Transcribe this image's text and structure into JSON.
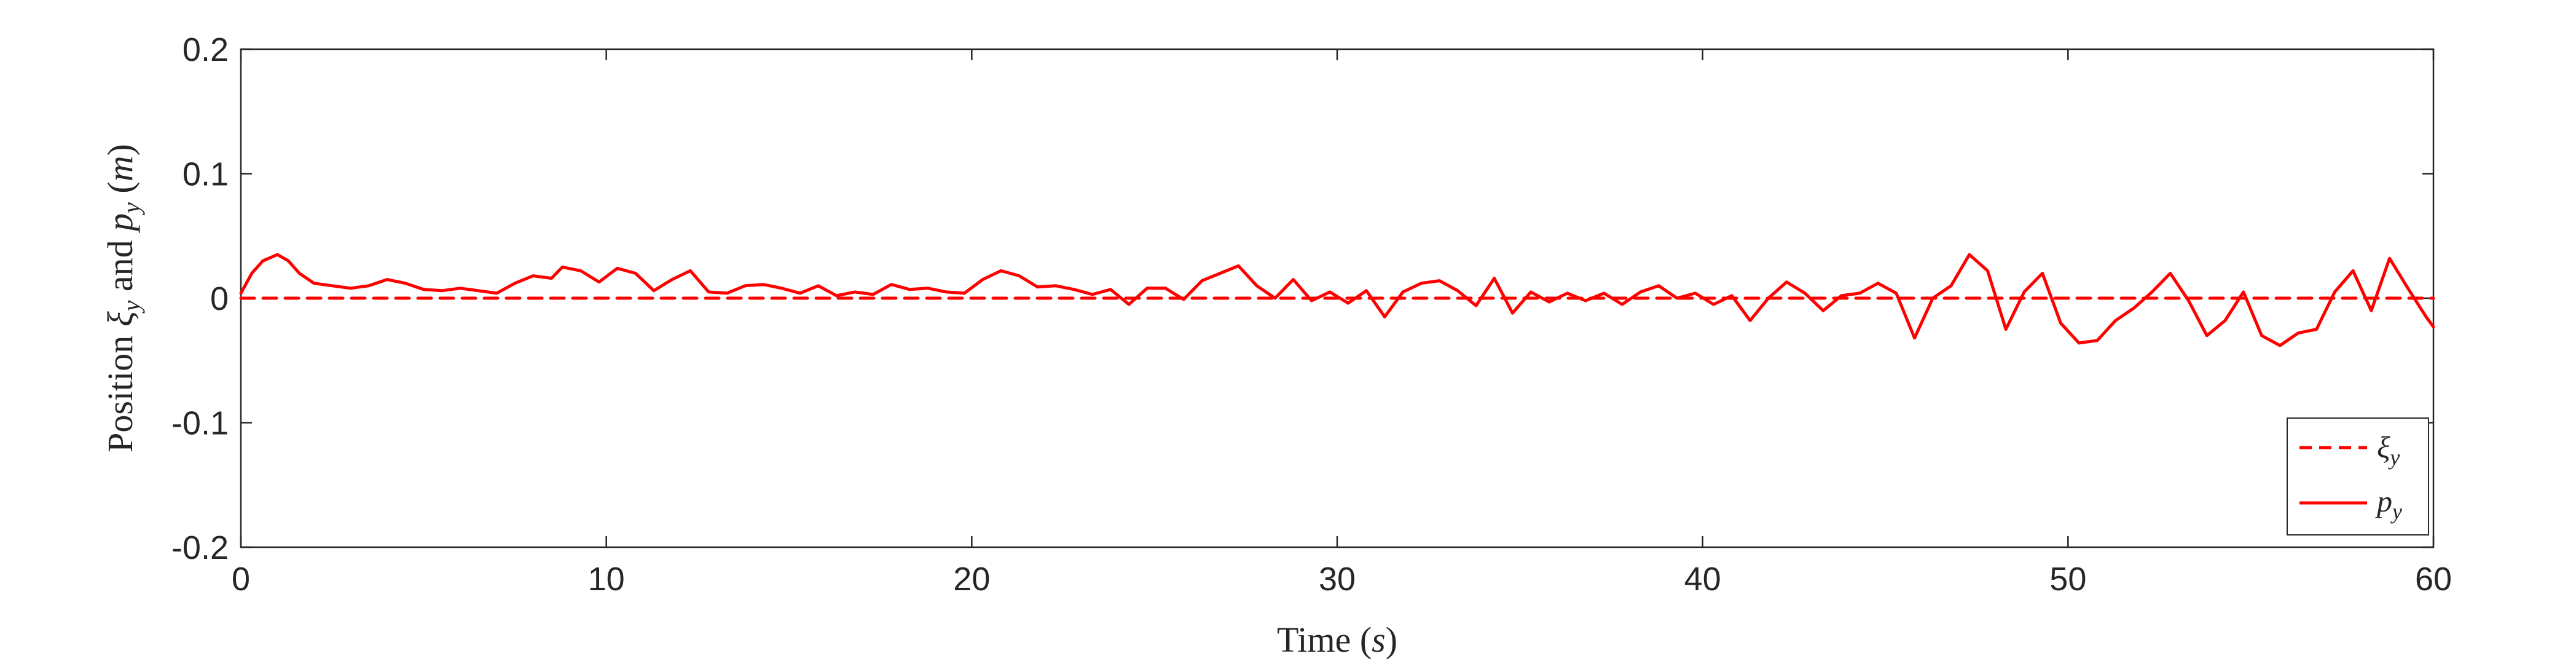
{
  "chart_data": {
    "type": "line",
    "xlabel_parts": [
      "Time (",
      "s",
      ")"
    ],
    "ylabel_parts": [
      "Position ",
      "ξ",
      "y",
      " and ",
      "p",
      "y",
      " (",
      "m",
      ")"
    ],
    "xlim": [
      0,
      60
    ],
    "ylim": [
      -0.2,
      0.2
    ],
    "xticks": [
      "0",
      "10",
      "20",
      "30",
      "40",
      "50",
      "60"
    ],
    "xtick_values": [
      0,
      10,
      20,
      30,
      40,
      50,
      60
    ],
    "yticks": [
      "0.2",
      "0.1",
      "0",
      "-0.1",
      "-0.2"
    ],
    "ytick_values": [
      0.2,
      0.1,
      0,
      -0.1,
      -0.2
    ],
    "grid": false,
    "legend_position": "bottom-right",
    "colors": {
      "series": "#ff0000",
      "axes": "#262626"
    },
    "series": [
      {
        "name_parts": [
          "ξ",
          "y"
        ],
        "style": "dashed",
        "x": [
          0,
          60
        ],
        "y": [
          0,
          0
        ]
      },
      {
        "name_parts": [
          "p",
          "y"
        ],
        "style": "solid",
        "x": [
          0,
          0.3,
          0.6,
          1.0,
          1.3,
          1.6,
          2.0,
          2.5,
          3.0,
          3.5,
          4.0,
          4.5,
          5.0,
          5.5,
          6.0,
          6.5,
          7.0,
          7.5,
          8.0,
          8.5,
          8.8,
          9.3,
          9.8,
          10.3,
          10.8,
          11.3,
          11.8,
          12.3,
          12.8,
          13.3,
          13.8,
          14.3,
          14.8,
          15.3,
          15.8,
          16.3,
          16.8,
          17.3,
          17.8,
          18.3,
          18.8,
          19.3,
          19.8,
          20.3,
          20.8,
          21.3,
          21.8,
          22.3,
          22.8,
          23.3,
          23.8,
          24.3,
          24.8,
          25.3,
          25.8,
          26.3,
          26.8,
          27.3,
          27.8,
          28.3,
          28.8,
          29.3,
          29.8,
          30.3,
          30.8,
          31.3,
          31.8,
          32.3,
          32.8,
          33.3,
          33.8,
          34.3,
          34.8,
          35.3,
          35.8,
          36.3,
          36.8,
          37.3,
          37.8,
          38.3,
          38.8,
          39.3,
          39.8,
          40.3,
          40.8,
          41.3,
          41.8,
          42.3,
          42.8,
          43.3,
          43.8,
          44.3,
          44.8,
          45.3,
          45.8,
          46.3,
          46.8,
          47.3,
          47.8,
          48.3,
          48.8,
          49.3,
          49.8,
          50.3,
          50.8,
          51.3,
          51.8,
          52.3,
          52.8,
          53.3,
          53.8,
          54.3,
          54.8,
          55.3,
          55.8,
          56.3,
          56.8,
          57.3,
          57.8,
          58.3,
          58.8,
          59.3,
          59.8,
          60
        ],
        "y": [
          0.004,
          0.02,
          0.03,
          0.035,
          0.03,
          0.02,
          0.012,
          0.01,
          0.008,
          0.01,
          0.015,
          0.012,
          0.007,
          0.006,
          0.008,
          0.006,
          0.004,
          0.012,
          0.018,
          0.016,
          0.025,
          0.022,
          0.013,
          0.024,
          0.02,
          0.006,
          0.015,
          0.022,
          0.005,
          0.004,
          0.01,
          0.011,
          0.008,
          0.004,
          0.01,
          0.002,
          0.005,
          0.003,
          0.011,
          0.007,
          0.008,
          0.005,
          0.004,
          0.015,
          0.022,
          0.018,
          0.009,
          0.01,
          0.007,
          0.003,
          0.007,
          -0.005,
          0.008,
          0.008,
          -0.001,
          0.014,
          0.02,
          0.026,
          0.01,
          0.0,
          0.015,
          -0.002,
          0.005,
          -0.004,
          0.006,
          -0.015,
          0.005,
          0.012,
          0.014,
          0.006,
          -0.006,
          0.016,
          -0.012,
          0.005,
          -0.003,
          0.004,
          -0.002,
          0.004,
          -0.005,
          0.005,
          0.01,
          0.0,
          0.004,
          -0.005,
          0.002,
          -0.018,
          0.0,
          0.013,
          0.004,
          -0.01,
          0.002,
          0.004,
          0.012,
          0.004,
          -0.032,
          0.0,
          0.01,
          0.035,
          0.022,
          -0.025,
          0.005,
          0.02,
          -0.02,
          -0.036,
          -0.034,
          -0.018,
          -0.008,
          0.005,
          0.02,
          -0.002,
          -0.03,
          -0.018,
          0.005,
          -0.03,
          -0.038,
          -0.028,
          -0.025,
          0.005,
          0.022,
          -0.01,
          0.032,
          0.008,
          -0.015,
          -0.023
        ]
      }
    ]
  }
}
